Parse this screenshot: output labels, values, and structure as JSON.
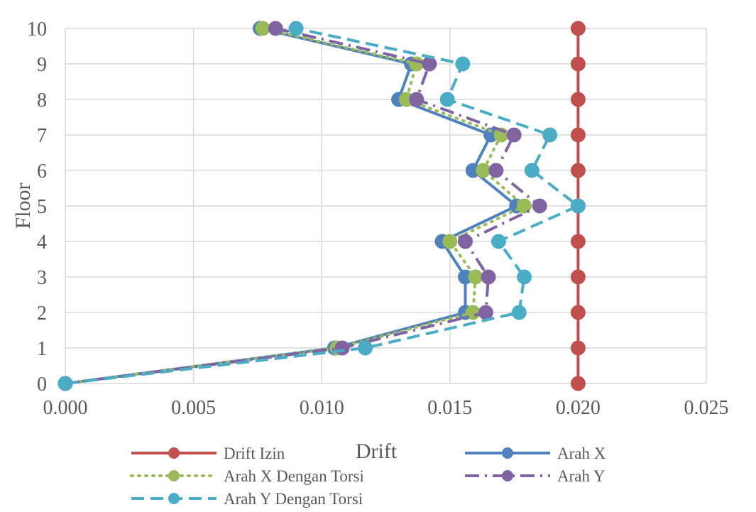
{
  "chart_data": {
    "type": "line",
    "title": "",
    "xlabel": "Drift",
    "ylabel": "Floor",
    "xlim": [
      0,
      0.025
    ],
    "ylim": [
      0,
      10
    ],
    "x_ticks": [
      "0.000",
      "0.005",
      "0.010",
      "0.015",
      "0.020",
      "0.025"
    ],
    "y_ticks": [
      "0",
      "1",
      "2",
      "3",
      "4",
      "5",
      "6",
      "7",
      "8",
      "9",
      "10"
    ],
    "grid": true,
    "legend_position": "bottom",
    "floors": [
      0,
      1,
      2,
      3,
      4,
      5,
      6,
      7,
      8,
      9,
      10
    ],
    "series": [
      {
        "name": "Drift Izin",
        "color": "#c0504d",
        "style": "solid",
        "x": [
          0.02,
          0.02,
          0.02,
          0.02,
          0.02,
          0.02,
          0.02,
          0.02,
          0.02,
          0.02,
          0.02
        ]
      },
      {
        "name": "Arah X",
        "color": "#4f81bd",
        "style": "solid",
        "x": [
          0.0,
          0.0105,
          0.0156,
          0.0156,
          0.0147,
          0.0176,
          0.0159,
          0.0166,
          0.013,
          0.0135,
          0.0076
        ]
      },
      {
        "name": "Arah X Dengan Torsi",
        "color": "#9bbb59",
        "style": "dotted",
        "x": [
          0.0,
          0.0106,
          0.0159,
          0.016,
          0.015,
          0.0179,
          0.0163,
          0.017,
          0.0133,
          0.0137,
          0.0077
        ]
      },
      {
        "name": "Arah Y",
        "color": "#8064a2",
        "style": "dashdot",
        "x": [
          0.0,
          0.0108,
          0.0164,
          0.0165,
          0.0156,
          0.0185,
          0.0168,
          0.0175,
          0.0137,
          0.0142,
          0.0082
        ]
      },
      {
        "name": "Arah Y Dengan Torsi",
        "color": "#4bacc6",
        "style": "dashed",
        "x": [
          0.0,
          0.0117,
          0.0177,
          0.0179,
          0.0169,
          0.02,
          0.0182,
          0.0189,
          0.0149,
          0.0155,
          0.009
        ]
      }
    ]
  }
}
